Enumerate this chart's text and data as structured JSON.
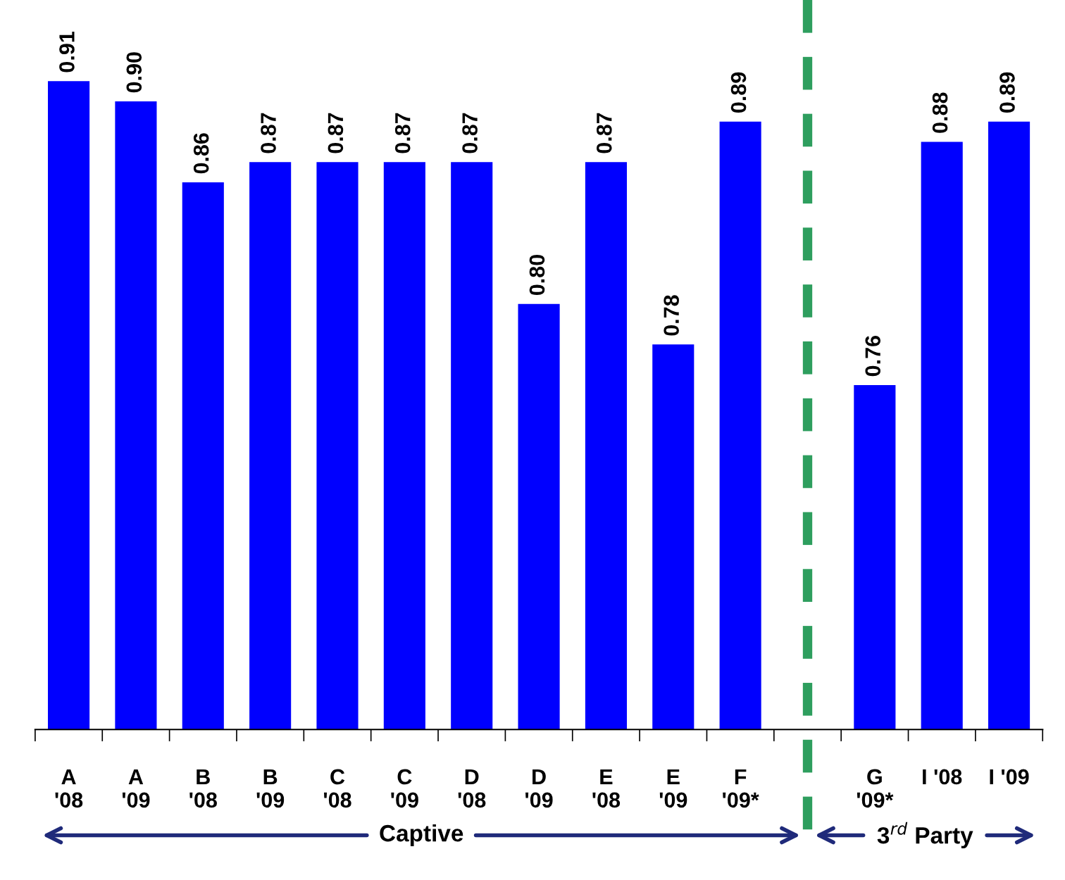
{
  "chart_data": {
    "type": "bar",
    "categories": [
      "A\n'08",
      "A\n'09",
      "B\n'08",
      "B\n'09",
      "C\n'08",
      "C\n'09",
      "D\n'08",
      "D\n'09",
      "E\n'08",
      "E\n'09",
      "F\n'09*",
      null,
      "G\n'09*",
      "I '08",
      "I '09"
    ],
    "values": [
      0.91,
      0.9,
      0.86,
      0.87,
      0.87,
      0.87,
      0.87,
      0.8,
      0.87,
      0.78,
      0.89,
      null,
      0.76,
      0.88,
      0.89
    ],
    "color": "#0000ff",
    "ylim": [
      0.59,
      0.95
    ],
    "tick_labels": "x",
    "value_labels": [
      "0.91",
      "0.90",
      "0.86",
      "0.87",
      "0.87",
      "0.87",
      "0.87",
      "0.80",
      "0.87",
      "0.78",
      "0.89",
      null,
      "0.76",
      "0.88",
      "0.89"
    ],
    "grid": false,
    "legend": false,
    "annotations": [
      "Captive",
      "3$^{rd}$ Party"
    ]
  }
}
